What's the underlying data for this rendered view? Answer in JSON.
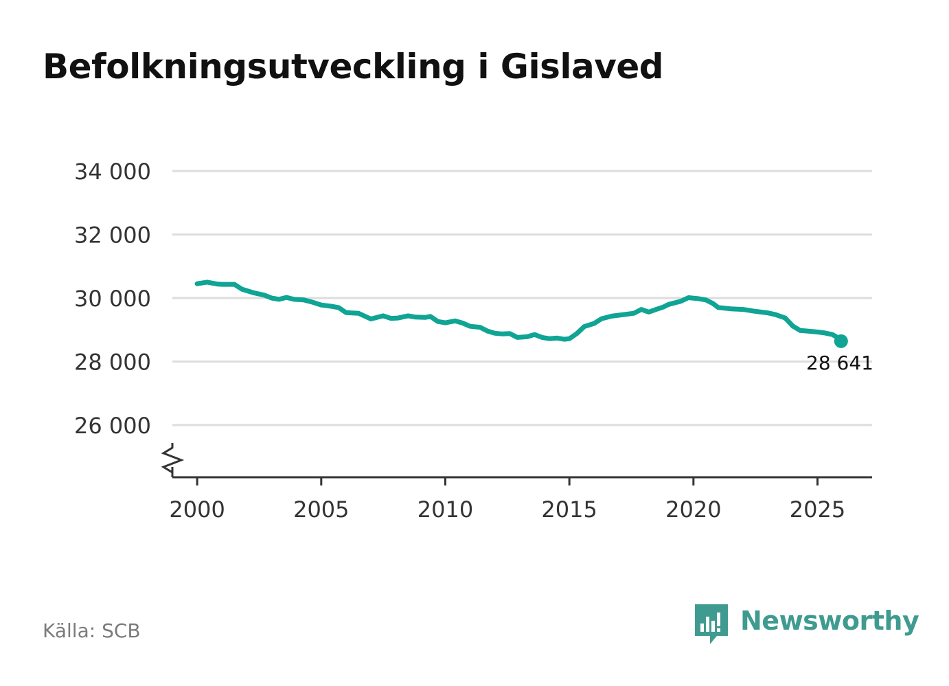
{
  "title": "Befolkningsutveckling i Gislaved",
  "source": "Källa: SCB",
  "brand": {
    "name": "Newsworthy",
    "icon": "newsworthy-logo-icon",
    "color": "#3f9b90"
  },
  "colors": {
    "line": "#10a494",
    "grid": "#dddddd",
    "axis": "#333333",
    "tick_text": "#333333"
  },
  "chart_data": {
    "type": "line",
    "title": "Befolkningsutveckling i Gislaved",
    "xlabel": "",
    "ylabel": "",
    "xlim": [
      1999,
      2027.2
    ],
    "ylim": [
      24800,
      34300
    ],
    "y_ticks": [
      26000,
      28000,
      30000,
      32000,
      34000
    ],
    "y_tick_labels": [
      "26 000",
      "28 000",
      "30 000",
      "32 000",
      "34 000"
    ],
    "x_ticks": [
      2000,
      2005,
      2010,
      2015,
      2020,
      2025
    ],
    "x_tick_labels": [
      "2000",
      "2005",
      "2010",
      "2015",
      "2020",
      "2025"
    ],
    "y_axis_break": true,
    "grid": "horizontal",
    "last_value_label": "28 641",
    "series": [
      {
        "x": [
          2000.0,
          2000.4,
          2000.8,
          2001.0,
          2001.5,
          2001.8,
          2002.3,
          2002.7,
          2003.0,
          2003.3,
          2003.6,
          2003.9,
          2004.3,
          2004.6,
          2005.0,
          2005.4,
          2005.7,
          2006.0,
          2006.5,
          2007.0,
          2007.5,
          2007.8,
          2008.1,
          2008.5,
          2008.8,
          2009.2,
          2009.4,
          2009.7,
          2010.0,
          2010.4,
          2010.7,
          2011.0,
          2011.4,
          2011.7,
          2012.0,
          2012.3,
          2012.6,
          2012.9,
          2013.3,
          2013.6,
          2013.9,
          2014.2,
          2014.5,
          2014.8,
          2015.0,
          2015.3,
          2015.6,
          2016.0,
          2016.3,
          2016.7,
          2017.0,
          2017.3,
          2017.6,
          2017.9,
          2018.2,
          2018.5,
          2018.8,
          2019.0,
          2019.5,
          2019.8,
          2020.2,
          2020.5,
          2020.8,
          2021.0,
          2021.5,
          2022.0,
          2022.5,
          2023.0,
          2023.3,
          2023.7,
          2024.0,
          2024.3,
          2024.6,
          2025.0,
          2025.3,
          2025.6,
          2025.8,
          2025.95
        ],
        "values": [
          30450,
          30500,
          30440,
          30430,
          30430,
          30280,
          30160,
          30090,
          30000,
          29960,
          30020,
          29960,
          29940,
          29880,
          29780,
          29740,
          29700,
          29540,
          29520,
          29340,
          29440,
          29360,
          29370,
          29440,
          29400,
          29390,
          29420,
          29260,
          29220,
          29280,
          29210,
          29110,
          29080,
          28960,
          28890,
          28870,
          28880,
          28760,
          28780,
          28850,
          28760,
          28720,
          28740,
          28700,
          28720,
          28880,
          29100,
          29200,
          29350,
          29430,
          29460,
          29490,
          29520,
          29640,
          29560,
          29640,
          29720,
          29800,
          29900,
          30010,
          29980,
          29940,
          29820,
          29700,
          29660,
          29640,
          29580,
          29530,
          29480,
          29370,
          29120,
          28980,
          28960,
          28930,
          28900,
          28850,
          28760,
          28641
        ]
      }
    ]
  }
}
